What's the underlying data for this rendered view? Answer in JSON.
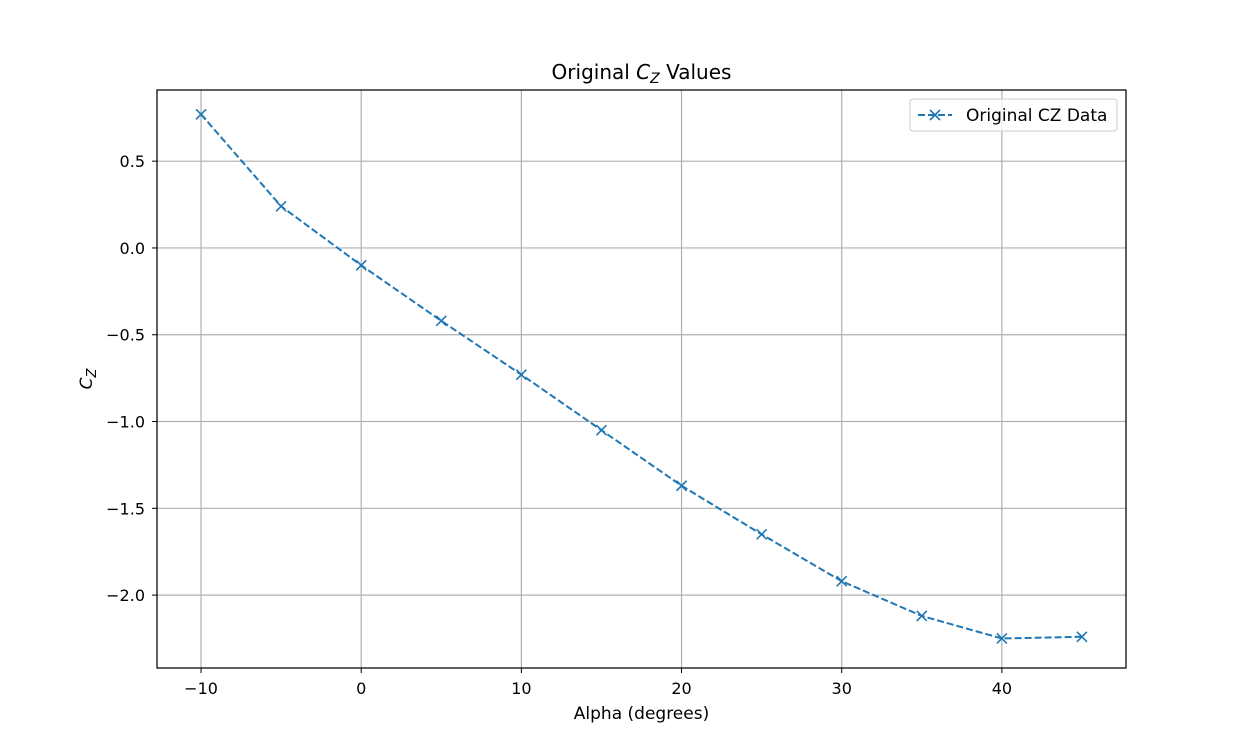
{
  "chart_data": {
    "type": "line",
    "title": {
      "prefix": "Original ",
      "symbol": "C",
      "subscript": "Z",
      "suffix": " Values"
    },
    "xlabel": "Alpha (degrees)",
    "ylabel": {
      "symbol": "C",
      "subscript": "Z"
    },
    "xlim": [
      -12.75,
      47.75
    ],
    "ylim": [
      -2.42,
      0.91
    ],
    "x_ticks": [
      -10,
      0,
      10,
      20,
      30,
      40
    ],
    "x_tick_labels": [
      "−10",
      "0",
      "10",
      "20",
      "30",
      "40"
    ],
    "y_ticks": [
      0.5,
      0.0,
      -0.5,
      -1.0,
      -1.5,
      -2.0
    ],
    "y_tick_labels": [
      "0.5",
      "0.0",
      "−0.5",
      "−1.0",
      "−1.5",
      "−2.0"
    ],
    "grid": true,
    "legend_position": "top-right",
    "x": [
      -10,
      -5,
      0,
      5,
      10,
      15,
      20,
      25,
      30,
      35,
      40,
      45
    ],
    "series": [
      {
        "name": "Original CZ Data",
        "values": [
          0.77,
          0.24,
          -0.1,
          -0.42,
          -0.73,
          -1.05,
          -1.37,
          -1.65,
          -1.92,
          -2.12,
          -2.25,
          -2.24
        ],
        "color": "#1f77b4",
        "line_style": "dashed",
        "marker": "x"
      }
    ],
    "colors": {
      "grid": "#b0b0b0",
      "axes": "#000000",
      "legend_border": "#cccccc"
    }
  }
}
